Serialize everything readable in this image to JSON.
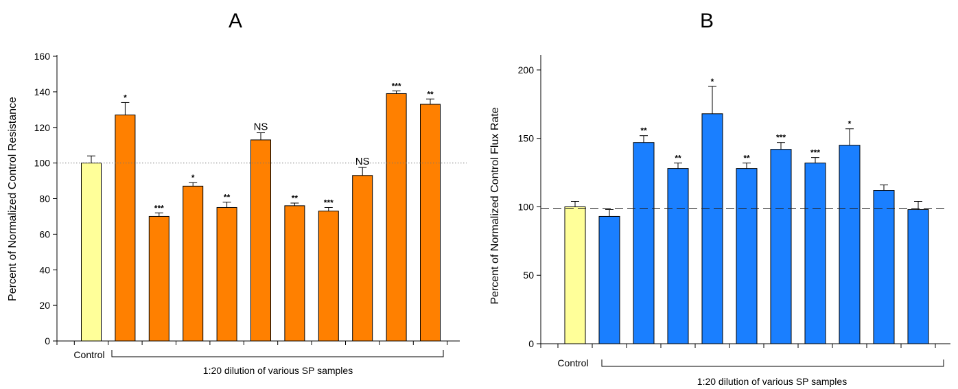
{
  "chart_data": [
    {
      "type": "bar",
      "panel_label": "A",
      "ylabel": "Percent of Normalized Control Resistance",
      "ylim": [
        0,
        160
      ],
      "yticks": [
        0,
        20,
        40,
        60,
        80,
        100,
        120,
        140,
        160
      ],
      "reference_line": 100,
      "reference_style": "dotted",
      "control_label": "Control",
      "group_label": "1:20 dilution of various SP samples",
      "colors": {
        "control": "#ffff99",
        "sample": "#ff8000"
      },
      "values": [
        100,
        127,
        70,
        87,
        75,
        113,
        76,
        73,
        93,
        139,
        133
      ],
      "errors": [
        4,
        7,
        2,
        2,
        3,
        4,
        1.5,
        2,
        4.5,
        1.5,
        3
      ],
      "significance": [
        "",
        "*",
        "***",
        "*",
        "**",
        "NS",
        "**",
        "***",
        "NS",
        "***",
        "**"
      ]
    },
    {
      "type": "bar",
      "panel_label": "B",
      "ylabel": "Percent of Normalized Control Flux Rate",
      "ylim": [
        0,
        210
      ],
      "yticks": [
        0,
        50,
        100,
        150,
        200
      ],
      "reference_line": 99,
      "reference_style": "dashed",
      "control_label": "Control",
      "group_label": "1:20 dilution of various SP samples",
      "colors": {
        "control": "#ffff99",
        "sample": "#1a7fff"
      },
      "values": [
        100,
        93,
        147,
        128,
        168,
        128,
        142,
        132,
        145,
        112,
        98
      ],
      "errors": [
        4,
        5,
        5,
        4,
        20,
        4,
        5,
        4,
        12,
        4,
        6
      ],
      "significance": [
        "",
        "",
        "**",
        "**",
        "*",
        "**",
        "***",
        "***",
        "*",
        "",
        ""
      ]
    }
  ]
}
